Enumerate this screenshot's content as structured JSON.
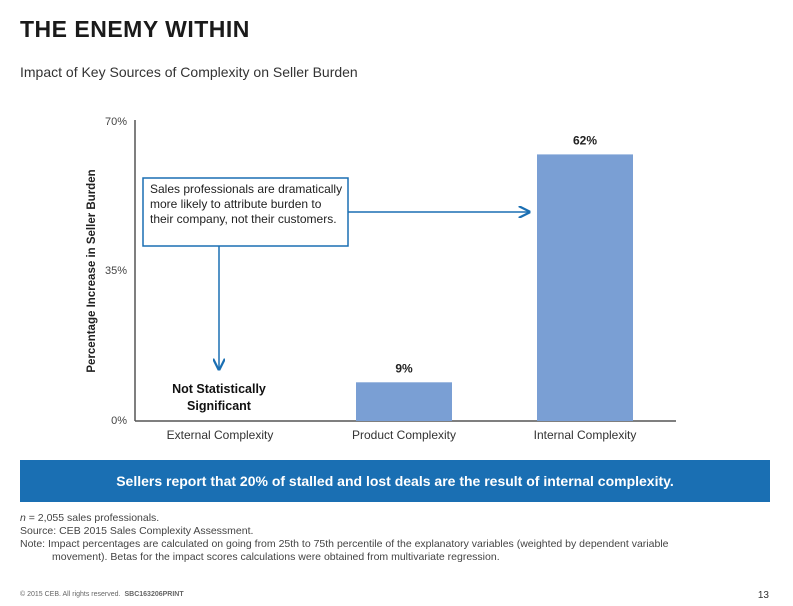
{
  "header": {
    "title": "THE ENEMY WITHIN",
    "subtitle": "Impact of Key Sources of Complexity on Seller Burden"
  },
  "chart_data": {
    "type": "bar",
    "title": "Impact of Key Sources of Complexity on Seller Burden",
    "categories": [
      "External Complexity",
      "Product Complexity",
      "Internal Complexity"
    ],
    "values": [
      0,
      9,
      62
    ],
    "data_labels": [
      "",
      "9%",
      "62%"
    ],
    "ylabel": "Percentage Increase in Seller Burden",
    "xlabel": "",
    "ylim": [
      0,
      70
    ],
    "yticks": [
      "0%",
      "35%",
      "70%"
    ],
    "bar_color": "#7a9fd4",
    "grid": false,
    "annotations": {
      "callout": "Sales professionals are dramatically more likely to attribute burden to their company, not their customers.",
      "not_significant_line1": "Not Statistically",
      "not_significant_line2": "Significant"
    }
  },
  "banner": {
    "text": "Sellers report that 20% of stalled and lost deals are the result of internal complexity.",
    "color": "#1a6fb3"
  },
  "notes": {
    "n_italic": "n",
    "n_text": " = 2,055 sales professionals.",
    "source": "Source: CEB 2015 Sales Complexity Assessment.",
    "note_line1": "Note: Impact percentages are calculated on going from 25th to 75th percentile of the explanatory variables (weighted by dependent variable",
    "note_line2": "movement). Betas for the impact scores calculations were obtained from multivariate regression."
  },
  "footer": {
    "copyright": "© 2015 CEB. All rights reserved.",
    "code": "SBC163206PRINT",
    "page": "13"
  }
}
